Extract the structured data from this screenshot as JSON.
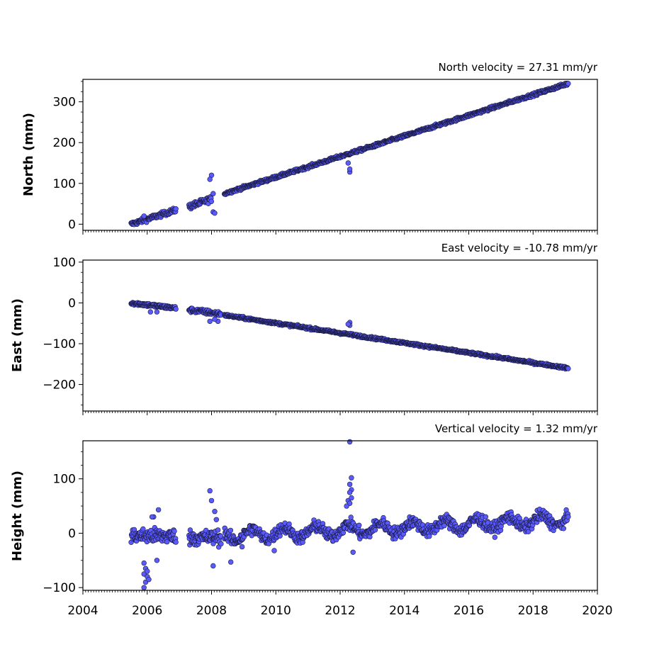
{
  "colors": {
    "marker_fill": "#5a5aff",
    "marker_edge": "#1a1a40"
  },
  "chart_data": [
    {
      "type": "scatter",
      "title": "North velocity = 27.31 mm/yr",
      "ylabel": "North (mm)",
      "xlim": [
        2004,
        2020
      ],
      "ylim": [
        -15,
        355
      ],
      "yticks": [
        0,
        100,
        200,
        300
      ],
      "velocity_mm_per_yr": 27.31,
      "segments": [
        {
          "x0": 2005.5,
          "x1": 2006.9,
          "y0": 0,
          "y1": 35,
          "noise": 4
        },
        {
          "x0": 2007.3,
          "x1": 2008.0,
          "y0": 43,
          "y1": 62,
          "noise": 5
        },
        {
          "x0": 2008.4,
          "x1": 2019.1,
          "y0": 75,
          "y1": 345,
          "noise": 2.5
        }
      ],
      "outliers": [
        [
          2008.0,
          120
        ],
        [
          2008.05,
          30
        ],
        [
          2008.1,
          27
        ],
        [
          2007.95,
          110
        ],
        [
          2012.3,
          128
        ],
        [
          2012.3,
          135
        ],
        [
          2012.25,
          150
        ],
        [
          2005.9,
          20
        ],
        [
          2008.05,
          75
        ]
      ]
    },
    {
      "type": "scatter",
      "title": "East velocity = -10.78 mm/yr",
      "ylabel": "East (mm)",
      "xlim": [
        2004,
        2020
      ],
      "ylim": [
        -265,
        105
      ],
      "yticks": [
        -200,
        -100,
        0,
        100
      ],
      "velocity_mm_per_yr": -10.78,
      "segments": [
        {
          "x0": 2005.5,
          "x1": 2006.9,
          "y0": 0,
          "y1": -13,
          "noise": 3
        },
        {
          "x0": 2007.3,
          "x1": 2008.3,
          "y0": -17,
          "y1": -27,
          "noise": 4
        },
        {
          "x0": 2008.4,
          "x1": 2019.1,
          "y0": -30,
          "y1": -160,
          "noise": 2
        }
      ],
      "outliers": [
        [
          2006.1,
          -22
        ],
        [
          2006.3,
          -22
        ],
        [
          2007.95,
          -45
        ],
        [
          2008.2,
          -45
        ],
        [
          2008.1,
          -40
        ],
        [
          2012.3,
          -48
        ],
        [
          2012.3,
          -55
        ],
        [
          2012.25,
          -52
        ]
      ]
    },
    {
      "type": "scatter",
      "title": "Vertical velocity = 1.32 mm/yr",
      "ylabel": "Height (mm)",
      "xlim": [
        2004,
        2020
      ],
      "ylim": [
        -105,
        170
      ],
      "yticks": [
        -100,
        0,
        100
      ],
      "velocity_mm_per_yr": 1.32,
      "segments": [
        {
          "x0": 2005.5,
          "x1": 2006.9,
          "y0": -5,
          "y1": -5,
          "noise": 10
        },
        {
          "x0": 2007.3,
          "x1": 2008.3,
          "y0": -8,
          "y1": -8,
          "noise": 10
        },
        {
          "x0": 2008.4,
          "x1": 2019.1,
          "y0": -5,
          "y1": 25,
          "noise": 8,
          "seasonal": 10
        }
      ],
      "outliers": [
        [
          2005.9,
          -55
        ],
        [
          2005.95,
          -65
        ],
        [
          2005.9,
          -75
        ],
        [
          2006.0,
          -80
        ],
        [
          2005.95,
          -90
        ],
        [
          2005.9,
          -100
        ],
        [
          2006.05,
          -85
        ],
        [
          2006.0,
          -70
        ],
        [
          2006.2,
          30
        ],
        [
          2006.35,
          43
        ],
        [
          2006.15,
          30
        ],
        [
          2006.3,
          -50
        ],
        [
          2007.95,
          78
        ],
        [
          2008.0,
          60
        ],
        [
          2008.1,
          40
        ],
        [
          2008.05,
          -60
        ],
        [
          2008.6,
          -53
        ],
        [
          2008.15,
          25
        ],
        [
          2012.3,
          168
        ],
        [
          2012.35,
          102
        ],
        [
          2012.3,
          90
        ],
        [
          2012.35,
          80
        ],
        [
          2012.3,
          75
        ],
        [
          2012.25,
          60
        ],
        [
          2012.3,
          55
        ],
        [
          2012.2,
          50
        ],
        [
          2012.35,
          65
        ],
        [
          2012.4,
          -35
        ],
        [
          2009.95,
          -32
        ],
        [
          2008.95,
          -25
        ]
      ]
    }
  ],
  "x_axis": {
    "ticks": [
      2004,
      2006,
      2008,
      2010,
      2012,
      2014,
      2016,
      2018,
      2020
    ]
  }
}
